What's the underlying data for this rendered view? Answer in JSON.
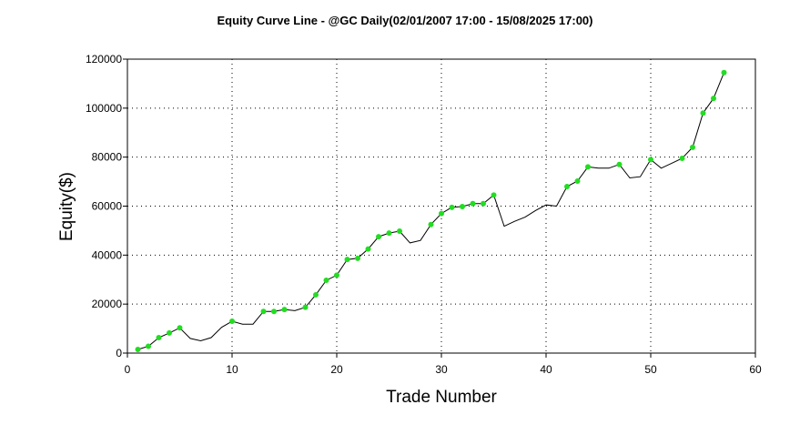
{
  "chart_data": {
    "type": "line",
    "title": "Equity Curve Line - @GC Daily(02/01/2007 17:00 - 15/08/2025 17:00)",
    "xlabel": "Trade Number",
    "ylabel": "Equity($)",
    "xlim": [
      0,
      60
    ],
    "ylim": [
      0,
      120000
    ],
    "xticks": [
      0,
      10,
      20,
      30,
      40,
      50,
      60
    ],
    "yticks": [
      0,
      20000,
      40000,
      60000,
      80000,
      100000,
      120000
    ],
    "grid": true,
    "legend": "none",
    "colors": {
      "line": "#000000",
      "winner_marker": "#22dd22"
    },
    "series": [
      {
        "x": [
          1,
          2,
          3,
          4,
          5,
          6,
          7,
          8,
          9,
          10,
          11,
          12,
          13,
          14,
          15,
          16,
          17,
          18,
          19,
          20,
          21,
          22,
          23,
          24,
          25,
          26,
          27,
          28,
          29,
          30,
          31,
          32,
          33,
          34,
          35,
          36,
          37,
          38,
          39,
          40,
          41,
          42,
          43,
          44,
          45,
          46,
          47,
          48,
          49,
          50,
          51,
          52,
          53,
          54,
          55,
          56,
          57
        ],
        "values": [
          1500,
          2800,
          6300,
          8200,
          10300,
          6000,
          5000,
          6300,
          10500,
          13000,
          11800,
          11800,
          17000,
          17000,
          17800,
          17300,
          18700,
          23800,
          29700,
          31800,
          38200,
          38700,
          42500,
          47500,
          49000,
          49800,
          45000,
          46000,
          52500,
          57000,
          59500,
          59800,
          61000,
          61000,
          64500,
          51800,
          53800,
          55500,
          58200,
          60500,
          60000,
          68000,
          70200,
          76000,
          75500,
          75500,
          77000,
          71500,
          72000,
          79000,
          75500,
          77500,
          79500,
          84000,
          98000,
          104000,
          114500
        ],
        "winners": [
          1,
          2,
          3,
          4,
          5,
          10,
          13,
          14,
          15,
          17,
          18,
          19,
          20,
          21,
          22,
          23,
          24,
          25,
          26,
          29,
          30,
          31,
          32,
          33,
          34,
          35,
          42,
          43,
          44,
          47,
          50,
          53,
          54,
          55,
          56,
          57
        ]
      }
    ]
  }
}
